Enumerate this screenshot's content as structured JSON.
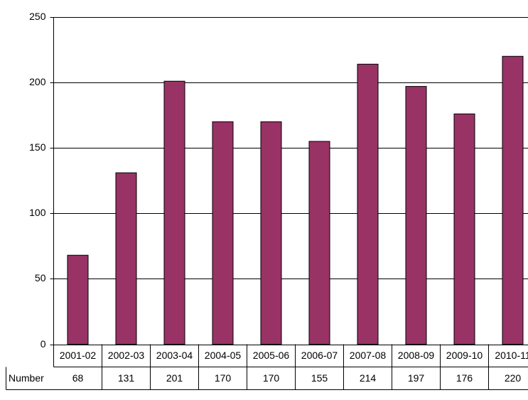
{
  "chart_data": {
    "type": "bar",
    "categories": [
      "2001-02",
      "2002-03",
      "2003-04",
      "2004-05",
      "2005-06",
      "2006-07",
      "2007-08",
      "2008-09",
      "2009-10",
      "2010-11"
    ],
    "series": [
      {
        "name": "Number",
        "color": "#993366",
        "values": [
          68,
          131,
          201,
          170,
          170,
          155,
          214,
          197,
          176,
          220
        ]
      }
    ],
    "ylim": [
      0,
      250
    ],
    "yticks": [
      0,
      50,
      100,
      150,
      200,
      250
    ],
    "grid": true
  }
}
